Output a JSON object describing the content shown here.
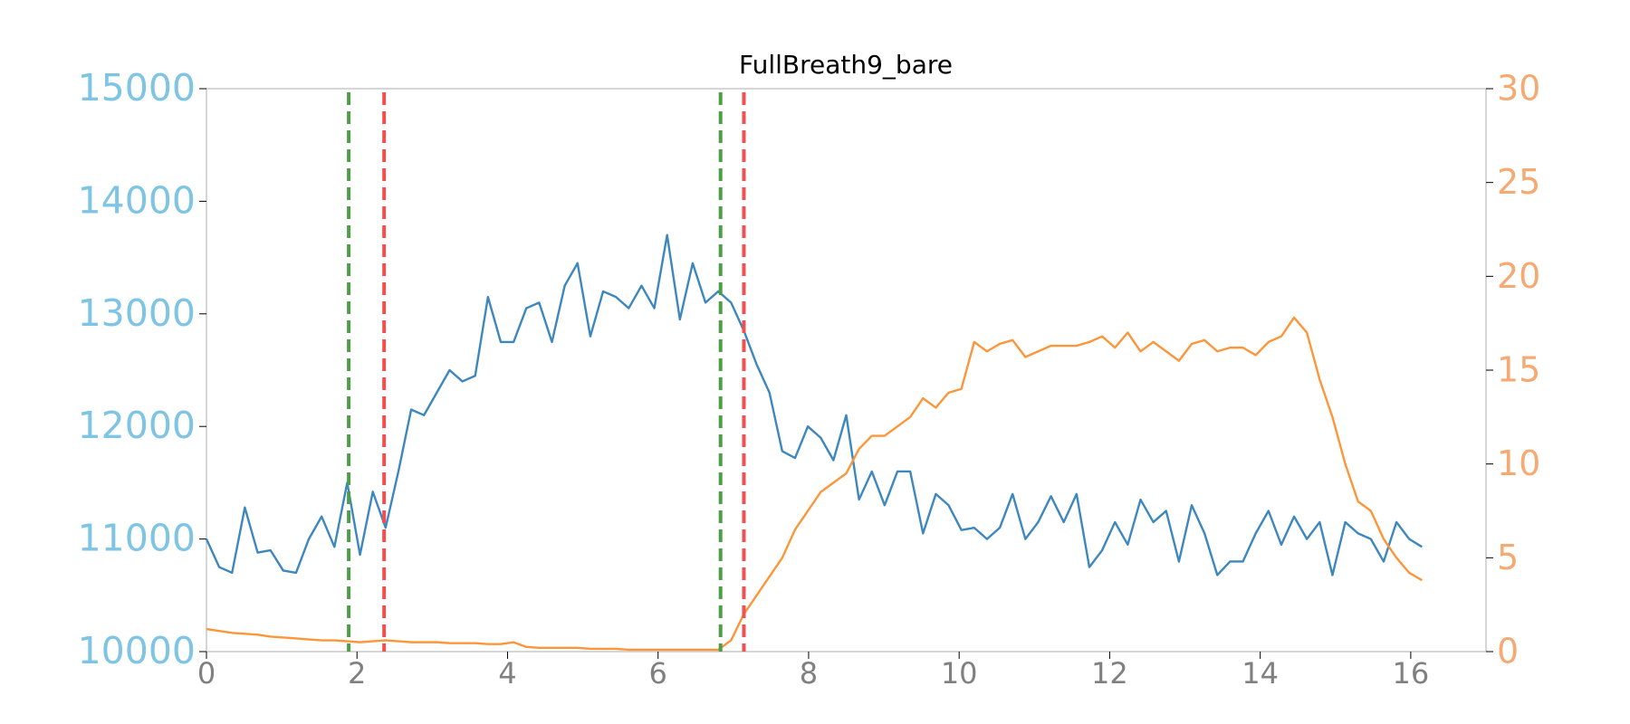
{
  "chart_data": {
    "type": "line",
    "title": "FullBreath9_bare",
    "x": [
      0,
      0.17,
      0.34,
      0.51,
      0.68,
      0.85,
      1.02,
      1.19,
      1.36,
      1.53,
      1.7,
      1.87,
      2.04,
      2.21,
      2.38,
      2.55,
      2.72,
      2.89,
      3.06,
      3.23,
      3.4,
      3.57,
      3.74,
      3.91,
      4.08,
      4.25,
      4.42,
      4.59,
      4.76,
      4.93,
      5.1,
      5.27,
      5.44,
      5.61,
      5.78,
      5.95,
      6.12,
      6.29,
      6.46,
      6.63,
      6.8,
      6.97,
      7.14,
      7.31,
      7.48,
      7.65,
      7.82,
      7.99,
      8.16,
      8.33,
      8.5,
      8.67,
      8.84,
      9.01,
      9.18,
      9.35,
      9.52,
      9.69,
      9.86,
      10.03,
      10.2,
      10.37,
      10.54,
      10.71,
      10.88,
      11.05,
      11.22,
      11.39,
      11.56,
      11.73,
      11.9,
      12.07,
      12.24,
      12.41,
      12.58,
      12.75,
      12.92,
      13.09,
      13.26,
      13.43,
      13.6,
      13.77,
      13.94,
      14.11,
      14.28,
      14.45,
      14.62,
      14.79,
      14.96,
      15.13,
      15.3,
      15.47,
      15.64,
      15.81,
      15.98,
      16.15
    ],
    "series": [
      {
        "color": "#3d87bf",
        "values": [
          11000,
          10750,
          10700,
          11280,
          10880,
          10900,
          10720,
          10700,
          11000,
          11200,
          10930,
          11500,
          10860,
          11420,
          11100,
          11600,
          12150,
          12100,
          12300,
          12500,
          12400,
          12450,
          13150,
          12750,
          12750,
          13050,
          13100,
          12750,
          13250,
          13450,
          12800,
          13200,
          13150,
          13050,
          13250,
          13050,
          13700,
          12950,
          13450,
          13100,
          13200,
          13100,
          12850,
          12550,
          12300,
          11780,
          11720,
          12000,
          11900,
          11700,
          12100,
          11350,
          11600,
          11300,
          11600,
          11600,
          11050,
          11400,
          11300,
          11080,
          11100,
          11000,
          11100,
          11400,
          11000,
          11150,
          11380,
          11150,
          11400,
          10750,
          10900,
          11150,
          10950,
          11350,
          11150,
          11250,
          10800,
          11300,
          11050,
          10680,
          10800,
          10800,
          11050,
          11250,
          10950,
          11200,
          11000,
          11150,
          10680,
          11150,
          11050,
          11000,
          10800,
          11150,
          11000,
          10930
        ]
      },
      {
        "color": "#fd963a",
        "axis": "y2",
        "values": [
          1.2,
          1.1,
          1.0,
          0.95,
          0.9,
          0.8,
          0.75,
          0.7,
          0.65,
          0.6,
          0.6,
          0.55,
          0.5,
          0.55,
          0.6,
          0.55,
          0.5,
          0.5,
          0.5,
          0.45,
          0.45,
          0.45,
          0.4,
          0.4,
          0.5,
          0.25,
          0.2,
          0.2,
          0.2,
          0.2,
          0.15,
          0.15,
          0.15,
          0.1,
          0.1,
          0.1,
          0.1,
          0.1,
          0.1,
          0.1,
          0.1,
          0.6,
          2.0,
          3.0,
          4.0,
          5.0,
          6.5,
          7.5,
          8.5,
          9.0,
          9.5,
          10.8,
          11.5,
          11.5,
          12.0,
          12.5,
          13.5,
          13.0,
          13.8,
          14.0,
          16.5,
          16.0,
          16.4,
          16.6,
          15.7,
          16.0,
          16.3,
          16.3,
          16.3,
          16.5,
          16.8,
          16.2,
          17.0,
          16.0,
          16.5,
          16.0,
          15.5,
          16.4,
          16.6,
          16.0,
          16.2,
          16.2,
          15.8,
          16.5,
          16.8,
          17.8,
          17.0,
          14.5,
          12.5,
          10.0,
          8.0,
          7.5,
          6.0,
          5.0,
          4.2,
          3.8
        ]
      }
    ],
    "vlines": [
      {
        "x": 1.89,
        "color": "#4e9e48"
      },
      {
        "x": 2.36,
        "color": "#f05050"
      },
      {
        "x": 6.83,
        "color": "#4e9e48"
      },
      {
        "x": 7.14,
        "color": "#f05050"
      }
    ],
    "xlim": [
      0,
      17
    ],
    "xticks": [
      0,
      2,
      4,
      6,
      8,
      10,
      12,
      14,
      16
    ],
    "ylim": [
      10000,
      15000
    ],
    "yticks": [
      10000,
      11000,
      12000,
      13000,
      14000,
      15000
    ],
    "ytick_color": "#7ec4e4",
    "y2lim": [
      0,
      30
    ],
    "y2ticks": [
      0,
      5,
      10,
      15,
      20,
      25,
      30
    ],
    "y2tick_color": "#f4aa72",
    "xtick_color": "#808080",
    "grid": false
  }
}
